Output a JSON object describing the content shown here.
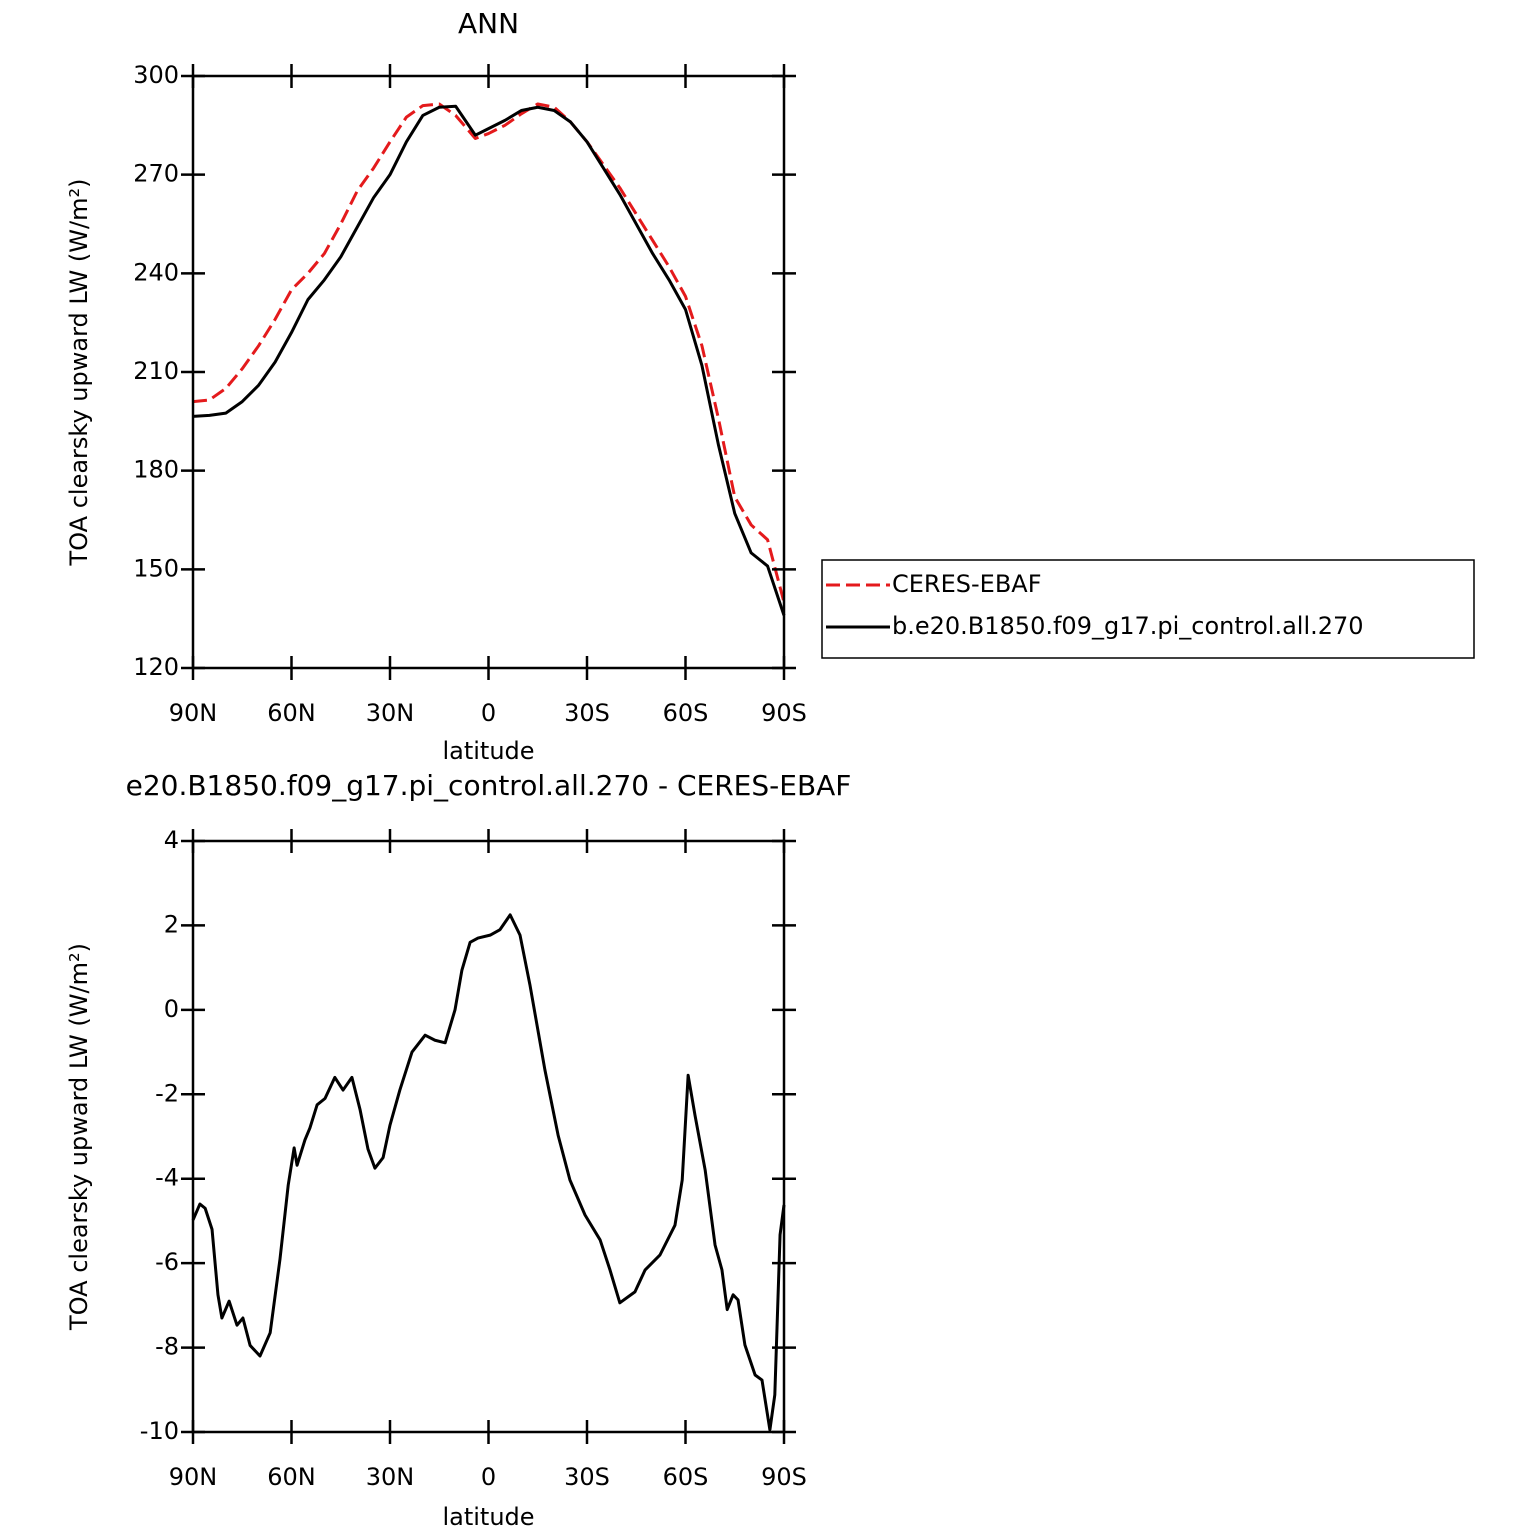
{
  "chart_data": [
    {
      "type": "line",
      "title": "ANN",
      "xlabel": "latitude",
      "ylabel": "TOA clearsky upward LW (W/m²)",
      "xlim": [
        90,
        -90
      ],
      "ylim": [
        120,
        300
      ],
      "xticks": [
        {
          "value": 90,
          "label": "90N"
        },
        {
          "value": 60,
          "label": "60N"
        },
        {
          "value": 30,
          "label": "30N"
        },
        0,
        {
          "value": -30,
          "label": "30S"
        },
        {
          "value": -60,
          "label": "60S"
        },
        {
          "value": -90,
          "label": "90S"
        }
      ],
      "yticks": [
        120,
        150,
        180,
        210,
        240,
        270,
        300
      ],
      "legend": "right",
      "x": [
        90,
        85,
        80,
        75,
        70,
        65,
        60,
        55,
        50,
        45,
        40,
        35,
        30,
        25,
        20,
        15,
        10,
        4,
        0,
        -5,
        -10,
        -15,
        -20,
        -25,
        -30,
        -35,
        -40,
        -45,
        -50,
        -55,
        -60,
        -65,
        -70,
        -75,
        -80,
        -85,
        -90
      ],
      "series": [
        {
          "name": "CERES-EBAF",
          "color": "#e41a1c",
          "dash": true,
          "values": [
            201,
            201.5,
            205,
            211,
            218,
            226,
            235,
            240,
            246,
            255,
            265,
            272,
            280,
            287.5,
            291,
            291.5,
            288,
            281,
            282.5,
            285,
            288.5,
            291.5,
            290.5,
            286,
            280,
            273,
            266,
            258,
            250,
            242,
            233,
            218,
            196,
            172,
            163.5,
            159,
            140
          ]
        },
        {
          "name": "b.e20.B1850.f09_g17.pi_control.all.270",
          "color": "#000000",
          "dash": false,
          "values": [
            196.5,
            196.8,
            197.5,
            201,
            206,
            213,
            222,
            232,
            238,
            245,
            254,
            263,
            270,
            280,
            288,
            290.5,
            290.8,
            282,
            284,
            286.5,
            289.5,
            290.5,
            289.5,
            286,
            280,
            272,
            264,
            255,
            246,
            238,
            229,
            212,
            188,
            167,
            155,
            151,
            136
          ]
        }
      ]
    },
    {
      "type": "line",
      "title": "e20.B1850.f09_g17.pi_control.all.270 - CERES-EBAF",
      "xlabel": "latitude",
      "ylabel": "TOA clearsky upward LW (W/m²)",
      "xlim": [
        90,
        -90
      ],
      "ylim": [
        -10,
        4
      ],
      "xticks": [
        {
          "value": 90,
          "label": "90N"
        },
        {
          "value": 60,
          "label": "60N"
        },
        {
          "value": 30,
          "label": "30N"
        },
        0,
        {
          "value": -30,
          "label": "30S"
        },
        {
          "value": -60,
          "label": "60S"
        },
        {
          "value": -90,
          "label": "90S"
        }
      ],
      "yticks": [
        -10,
        -8,
        -6,
        -4,
        -2,
        0,
        2,
        4
      ],
      "x": [
        90,
        87.9,
        86.3,
        84.2,
        82.4,
        81.2,
        79,
        76.6,
        74.8,
        72.6,
        69.6,
        66.5,
        63.5,
        61,
        59.2,
        58.3,
        55.9,
        54.4,
        52.2,
        49.8,
        46.8,
        44.3,
        41.6,
        39.1,
        36.7,
        34.6,
        32.1,
        30,
        27,
        23.3,
        19.3,
        16.3,
        13.2,
        10.2,
        8.1,
        5.6,
        3.2,
        -0.5,
        -3.5,
        -6.6,
        -9.6,
        -12.6,
        -17.2,
        -21.2,
        -24.8,
        -29.4,
        -34,
        -37,
        -40,
        -44.6,
        -47.7,
        -52.2,
        -56.8,
        -59,
        -60.8,
        -62.9,
        -66,
        -69,
        -71.1,
        -72.7,
        -74.5,
        -76,
        -78.1,
        -81.2,
        -83.3,
        -85.7,
        -87.2,
        -88.8,
        -90
      ],
      "series": [
        {
          "color": "#000000",
          "dash": false,
          "values": [
            -4.98,
            -4.6,
            -4.7,
            -5.2,
            -6.75,
            -7.3,
            -6.9,
            -7.47,
            -7.3,
            -7.95,
            -8.2,
            -7.65,
            -5.9,
            -4.15,
            -3.27,
            -3.68,
            -3.08,
            -2.8,
            -2.25,
            -2.1,
            -1.6,
            -1.9,
            -1.6,
            -2.37,
            -3.3,
            -3.75,
            -3.5,
            -2.73,
            -1.9,
            -1.0,
            -0.6,
            -0.72,
            -0.78,
            0.0,
            0.94,
            1.6,
            1.7,
            1.77,
            1.9,
            2.25,
            1.77,
            0.6,
            -1.43,
            -2.97,
            -4.03,
            -4.86,
            -5.45,
            -6.16,
            -6.94,
            -6.68,
            -6.16,
            -5.81,
            -5.1,
            -4.03,
            -1.55,
            -2.5,
            -3.8,
            -5.57,
            -6.16,
            -7.1,
            -6.75,
            -6.87,
            -7.94,
            -8.65,
            -8.77,
            -9.95,
            -9.12,
            -5.33,
            -4.62
          ]
        }
      ]
    }
  ]
}
